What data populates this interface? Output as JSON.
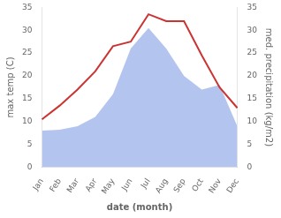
{
  "chart_data": {
    "type": "line",
    "xlabel": "date (month)",
    "ylabel": "max temp (C)",
    "y2label": "med. precipitation (kg/m2)",
    "categories": [
      "Jan",
      "Feb",
      "Mar",
      "Apr",
      "May",
      "Jun",
      "Jul",
      "Aug",
      "Sep",
      "Oct",
      "Nov",
      "Dec"
    ],
    "series": [
      {
        "type": "line",
        "color": "#cc3333",
        "values": [
          10.5,
          13.5,
          17.0,
          21.0,
          26.5,
          27.5,
          33.5,
          32.0,
          32.0,
          24.5,
          17.5,
          13.0
        ]
      },
      {
        "type": "area",
        "color": "#b3c4ef",
        "axis": "y2",
        "values": [
          8.0,
          8.2,
          9.0,
          11.0,
          16.0,
          26.0,
          30.5,
          26.0,
          20.0,
          17.0,
          18.0,
          9.0
        ]
      }
    ],
    "ylim": [
      0,
      35
    ],
    "yticks": [
      0,
      5,
      10,
      15,
      20,
      25,
      30,
      35
    ],
    "y2lim": [
      0,
      35
    ],
    "y2ticks": [
      0,
      5,
      10,
      15,
      20,
      25,
      30,
      35
    ],
    "grid": false
  }
}
